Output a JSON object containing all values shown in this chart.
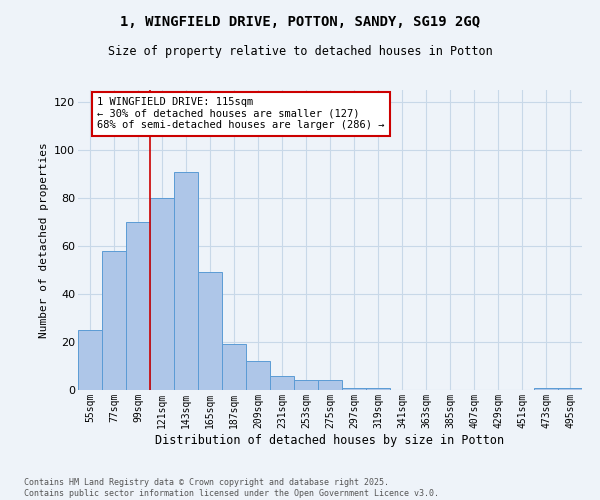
{
  "title_line1": "1, WINGFIELD DRIVE, POTTON, SANDY, SG19 2GQ",
  "title_line2": "Size of property relative to detached houses in Potton",
  "xlabel": "Distribution of detached houses by size in Potton",
  "ylabel": "Number of detached properties",
  "categories": [
    "55sqm",
    "77sqm",
    "99sqm",
    "121sqm",
    "143sqm",
    "165sqm",
    "187sqm",
    "209sqm",
    "231sqm",
    "253sqm",
    "275sqm",
    "297sqm",
    "319sqm",
    "341sqm",
    "363sqm",
    "385sqm",
    "407sqm",
    "429sqm",
    "451sqm",
    "473sqm",
    "495sqm"
  ],
  "values": [
    25,
    58,
    70,
    80,
    91,
    49,
    19,
    12,
    6,
    4,
    4,
    1,
    1,
    0,
    0,
    0,
    0,
    0,
    0,
    1,
    1
  ],
  "bar_color": "#aec6e8",
  "bar_edge_color": "#5b9bd5",
  "grid_color": "#c8d8e8",
  "background_color": "#eef3f9",
  "property_line_x": 2.5,
  "annotation_text": "1 WINGFIELD DRIVE: 115sqm\n← 30% of detached houses are smaller (127)\n68% of semi-detached houses are larger (286) →",
  "annotation_box_color": "#ffffff",
  "annotation_box_edge": "#cc0000",
  "red_line_color": "#cc0000",
  "ylim": [
    0,
    125
  ],
  "yticks": [
    0,
    20,
    40,
    60,
    80,
    100,
    120
  ],
  "footer": "Contains HM Land Registry data © Crown copyright and database right 2025.\nContains public sector information licensed under the Open Government Licence v3.0."
}
